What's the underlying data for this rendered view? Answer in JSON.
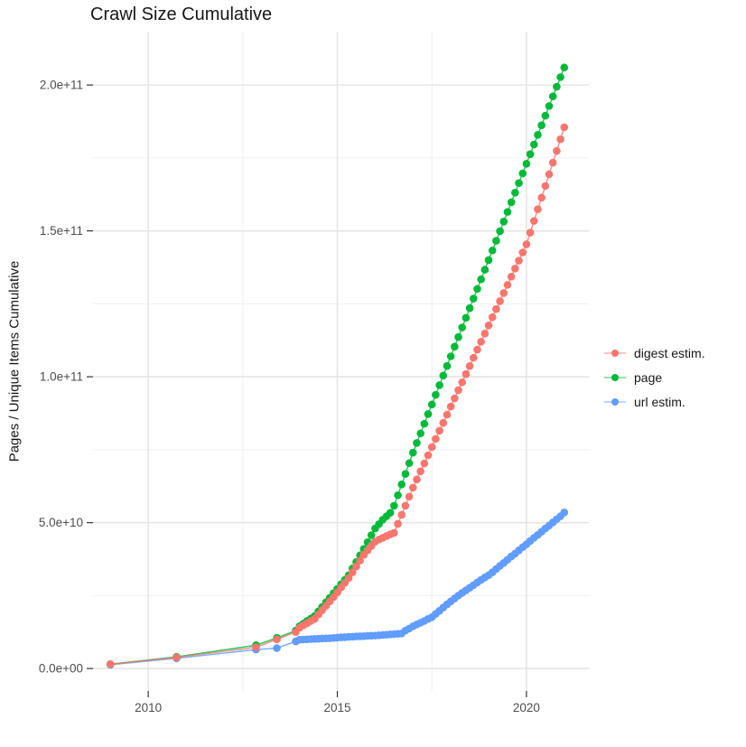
{
  "title": "Crawl Size Cumulative",
  "y_axis": {
    "label": "Pages / Unique Items Cumulative",
    "tick_labels": [
      "0.0e+00",
      "5.0e+10",
      "1.0e+11",
      "1.5e+11",
      "2.0e+11"
    ],
    "tick_values_billion": [
      0,
      50,
      100,
      150,
      200
    ]
  },
  "x_axis": {
    "tick_labels": [
      "2010",
      "2015",
      "2020"
    ],
    "tick_values": [
      2010,
      2015,
      2020
    ]
  },
  "legend": {
    "items": [
      {
        "label": "digest estim.",
        "color": "#F8766D"
      },
      {
        "label": "page",
        "color": "#00BA38"
      },
      {
        "label": "url estim.",
        "color": "#619CFF"
      }
    ]
  },
  "colors": {
    "background": "#FFFFFF",
    "grid_major": "#E3E3E3",
    "grid_minor": "#F0F0F0",
    "tick_mark": "#333333",
    "tick_text": "#4D4D4D",
    "title_text": "#161616",
    "digest": "#F8766D",
    "page": "#00BA38",
    "url": "#619CFF"
  },
  "chart_data": {
    "type": "scatter",
    "title": "Crawl Size Cumulative",
    "xlabel": "",
    "ylabel": "Pages / Unique Items Cumulative",
    "x_unit": "year (decimal)",
    "y_unit": "items, stored as billions (1e9)",
    "x_range": [
      2008.54,
      2021.65
    ],
    "y_range_billion": [
      -7.7,
      218.3
    ],
    "grid": {
      "major_x": [
        2010,
        2015,
        2020
      ],
      "minor_x": [
        2012.5,
        2017.5
      ],
      "major_y_billion": [
        0,
        50,
        100,
        150,
        200
      ],
      "minor_y_billion": [
        25,
        75,
        125,
        175
      ],
      "grid_on": true,
      "legend_position": "right"
    },
    "series": [
      {
        "name": "url estim.",
        "color": "#619CFF",
        "points": [
          [
            2009.0,
            1.3
          ],
          [
            2010.75,
            3.5
          ],
          [
            2012.85,
            6.5
          ],
          [
            2013.4,
            7.0
          ],
          [
            2013.9,
            9.3
          ],
          [
            2014.0,
            9.9
          ],
          [
            2014.1,
            9.95
          ],
          [
            2014.2,
            10.0
          ],
          [
            2014.3,
            10.1
          ],
          [
            2014.4,
            10.15
          ],
          [
            2014.5,
            10.2
          ],
          [
            2014.6,
            10.3
          ],
          [
            2014.7,
            10.35
          ],
          [
            2014.8,
            10.4
          ],
          [
            2014.9,
            10.5
          ],
          [
            2015.0,
            10.6
          ],
          [
            2015.1,
            10.7
          ],
          [
            2015.2,
            10.75
          ],
          [
            2015.3,
            10.85
          ],
          [
            2015.4,
            10.9
          ],
          [
            2015.5,
            11.0
          ],
          [
            2015.6,
            11.05
          ],
          [
            2015.7,
            11.1
          ],
          [
            2015.8,
            11.2
          ],
          [
            2015.9,
            11.25
          ],
          [
            2016.0,
            11.3
          ],
          [
            2016.1,
            11.4
          ],
          [
            2016.2,
            11.5
          ],
          [
            2016.3,
            11.6
          ],
          [
            2016.4,
            11.7
          ],
          [
            2016.5,
            11.8
          ],
          [
            2016.6,
            11.9
          ],
          [
            2016.7,
            12.0
          ],
          [
            2016.8,
            13.0
          ],
          [
            2016.9,
            13.7
          ],
          [
            2017.0,
            14.5
          ],
          [
            2017.1,
            15.1
          ],
          [
            2017.2,
            15.7
          ],
          [
            2017.3,
            16.3
          ],
          [
            2017.4,
            17.0
          ],
          [
            2017.5,
            17.6
          ],
          [
            2017.6,
            18.7
          ],
          [
            2017.7,
            19.8
          ],
          [
            2017.8,
            20.9
          ],
          [
            2017.9,
            22.0
          ],
          [
            2018.0,
            23.0
          ],
          [
            2018.1,
            24.0
          ],
          [
            2018.2,
            25.0
          ],
          [
            2018.3,
            25.9
          ],
          [
            2018.4,
            26.8
          ],
          [
            2018.5,
            27.7
          ],
          [
            2018.6,
            28.6
          ],
          [
            2018.7,
            29.5
          ],
          [
            2018.8,
            30.4
          ],
          [
            2018.9,
            31.2
          ],
          [
            2019.0,
            32.0
          ],
          [
            2019.1,
            33.0
          ],
          [
            2019.2,
            34.1
          ],
          [
            2019.3,
            35.2
          ],
          [
            2019.4,
            36.2
          ],
          [
            2019.5,
            37.3
          ],
          [
            2019.6,
            38.4
          ],
          [
            2019.7,
            39.4
          ],
          [
            2019.8,
            40.5
          ],
          [
            2019.9,
            41.6
          ],
          [
            2020.0,
            42.6
          ],
          [
            2020.1,
            43.7
          ],
          [
            2020.2,
            44.8
          ],
          [
            2020.3,
            45.8
          ],
          [
            2020.4,
            46.9
          ],
          [
            2020.5,
            48.0
          ],
          [
            2020.6,
            49.0
          ],
          [
            2020.7,
            50.1
          ],
          [
            2020.8,
            51.2
          ],
          [
            2020.9,
            52.2
          ],
          [
            2021.0,
            53.5
          ]
        ]
      },
      {
        "name": "page",
        "color": "#00BA38",
        "points": [
          [
            2009.0,
            1.5
          ],
          [
            2010.75,
            4.0
          ],
          [
            2012.85,
            8.0
          ],
          [
            2013.4,
            10.5
          ],
          [
            2013.9,
            13.0
          ],
          [
            2014.0,
            14.5
          ],
          [
            2014.1,
            15.4
          ],
          [
            2014.2,
            16.3
          ],
          [
            2014.3,
            17.1
          ],
          [
            2014.4,
            18.0
          ],
          [
            2014.5,
            19.6
          ],
          [
            2014.6,
            21.1
          ],
          [
            2014.7,
            22.7
          ],
          [
            2014.8,
            24.2
          ],
          [
            2014.9,
            25.8
          ],
          [
            2015.0,
            27.3
          ],
          [
            2015.1,
            28.9
          ],
          [
            2015.2,
            30.4
          ],
          [
            2015.3,
            32.0
          ],
          [
            2015.4,
            34.3
          ],
          [
            2015.5,
            36.5
          ],
          [
            2015.6,
            38.8
          ],
          [
            2015.7,
            41.0
          ],
          [
            2015.8,
            43.3
          ],
          [
            2015.9,
            45.7
          ],
          [
            2016.0,
            48.0
          ],
          [
            2016.1,
            49.5
          ],
          [
            2016.2,
            51.0
          ],
          [
            2016.3,
            52.2
          ],
          [
            2016.4,
            53.4
          ],
          [
            2016.5,
            55.8
          ],
          [
            2016.6,
            59.4
          ],
          [
            2016.7,
            63.1
          ],
          [
            2016.8,
            66.7
          ],
          [
            2016.9,
            70.4
          ],
          [
            2017.0,
            74.0
          ],
          [
            2017.1,
            77.3
          ],
          [
            2017.2,
            80.6
          ],
          [
            2017.3,
            83.9
          ],
          [
            2017.4,
            87.2
          ],
          [
            2017.5,
            90.5
          ],
          [
            2017.6,
            93.8
          ],
          [
            2017.7,
            97.1
          ],
          [
            2017.8,
            100.4
          ],
          [
            2017.9,
            103.7
          ],
          [
            2018.0,
            107.0
          ],
          [
            2018.1,
            110.3
          ],
          [
            2018.2,
            113.6
          ],
          [
            2018.3,
            116.9
          ],
          [
            2018.4,
            120.2
          ],
          [
            2018.5,
            123.5
          ],
          [
            2018.6,
            126.8
          ],
          [
            2018.7,
            130.1
          ],
          [
            2018.8,
            133.4
          ],
          [
            2018.9,
            136.7
          ],
          [
            2019.0,
            140.0
          ],
          [
            2019.1,
            143.3
          ],
          [
            2019.2,
            146.6
          ],
          [
            2019.3,
            149.9
          ],
          [
            2019.4,
            153.2
          ],
          [
            2019.5,
            156.5
          ],
          [
            2019.6,
            159.8
          ],
          [
            2019.7,
            163.1
          ],
          [
            2019.8,
            166.4
          ],
          [
            2019.9,
            169.7
          ],
          [
            2020.0,
            173.0
          ],
          [
            2020.1,
            176.3
          ],
          [
            2020.2,
            179.6
          ],
          [
            2020.3,
            182.9
          ],
          [
            2020.4,
            186.2
          ],
          [
            2020.5,
            189.5
          ],
          [
            2020.6,
            192.8
          ],
          [
            2020.7,
            196.1
          ],
          [
            2020.8,
            199.4
          ],
          [
            2020.9,
            202.7
          ],
          [
            2021.0,
            206.0
          ]
        ]
      },
      {
        "name": "digest estim.",
        "color": "#F8766D",
        "points": [
          [
            2009.0,
            1.5
          ],
          [
            2010.75,
            3.8
          ],
          [
            2012.85,
            7.3
          ],
          [
            2013.4,
            10.0
          ],
          [
            2013.9,
            12.5
          ],
          [
            2014.0,
            14.0
          ],
          [
            2014.1,
            14.8
          ],
          [
            2014.2,
            15.5
          ],
          [
            2014.3,
            16.3
          ],
          [
            2014.4,
            17.0
          ],
          [
            2014.5,
            18.5
          ],
          [
            2014.6,
            20.0
          ],
          [
            2014.7,
            21.5
          ],
          [
            2014.8,
            23.0
          ],
          [
            2014.9,
            24.5
          ],
          [
            2015.0,
            26.1
          ],
          [
            2015.1,
            27.8
          ],
          [
            2015.2,
            29.4
          ],
          [
            2015.3,
            31.0
          ],
          [
            2015.4,
            33.0
          ],
          [
            2015.5,
            35.0
          ],
          [
            2015.6,
            37.0
          ],
          [
            2015.7,
            39.0
          ],
          [
            2015.8,
            40.5
          ],
          [
            2015.9,
            42.0
          ],
          [
            2016.0,
            43.5
          ],
          [
            2016.1,
            44.2
          ],
          [
            2016.2,
            44.8
          ],
          [
            2016.3,
            45.4
          ],
          [
            2016.4,
            46.0
          ],
          [
            2016.5,
            46.5
          ],
          [
            2016.6,
            49.6
          ],
          [
            2016.7,
            52.7
          ],
          [
            2016.8,
            55.8
          ],
          [
            2016.9,
            58.9
          ],
          [
            2017.0,
            62.0
          ],
          [
            2017.1,
            64.8
          ],
          [
            2017.2,
            67.6
          ],
          [
            2017.3,
            70.3
          ],
          [
            2017.4,
            73.1
          ],
          [
            2017.5,
            75.9
          ],
          [
            2017.6,
            78.7
          ],
          [
            2017.7,
            81.5
          ],
          [
            2017.8,
            84.2
          ],
          [
            2017.9,
            87.0
          ],
          [
            2018.0,
            89.8
          ],
          [
            2018.1,
            92.6
          ],
          [
            2018.2,
            95.4
          ],
          [
            2018.3,
            98.1
          ],
          [
            2018.4,
            100.9
          ],
          [
            2018.5,
            103.7
          ],
          [
            2018.6,
            106.5
          ],
          [
            2018.7,
            109.3
          ],
          [
            2018.8,
            112.0
          ],
          [
            2018.9,
            114.8
          ],
          [
            2019.0,
            117.6
          ],
          [
            2019.1,
            120.4
          ],
          [
            2019.2,
            123.2
          ],
          [
            2019.3,
            125.9
          ],
          [
            2019.4,
            128.7
          ],
          [
            2019.5,
            131.5
          ],
          [
            2019.6,
            134.3
          ],
          [
            2019.7,
            137.1
          ],
          [
            2019.8,
            139.8
          ],
          [
            2019.9,
            142.6
          ],
          [
            2020.0,
            145.4
          ],
          [
            2020.1,
            149.4
          ],
          [
            2020.2,
            153.4
          ],
          [
            2020.3,
            157.4
          ],
          [
            2020.4,
            161.4
          ],
          [
            2020.5,
            165.4
          ],
          [
            2020.6,
            169.4
          ],
          [
            2020.7,
            173.4
          ],
          [
            2020.8,
            177.4
          ],
          [
            2020.9,
            181.4
          ],
          [
            2021.0,
            185.5
          ]
        ]
      }
    ]
  }
}
